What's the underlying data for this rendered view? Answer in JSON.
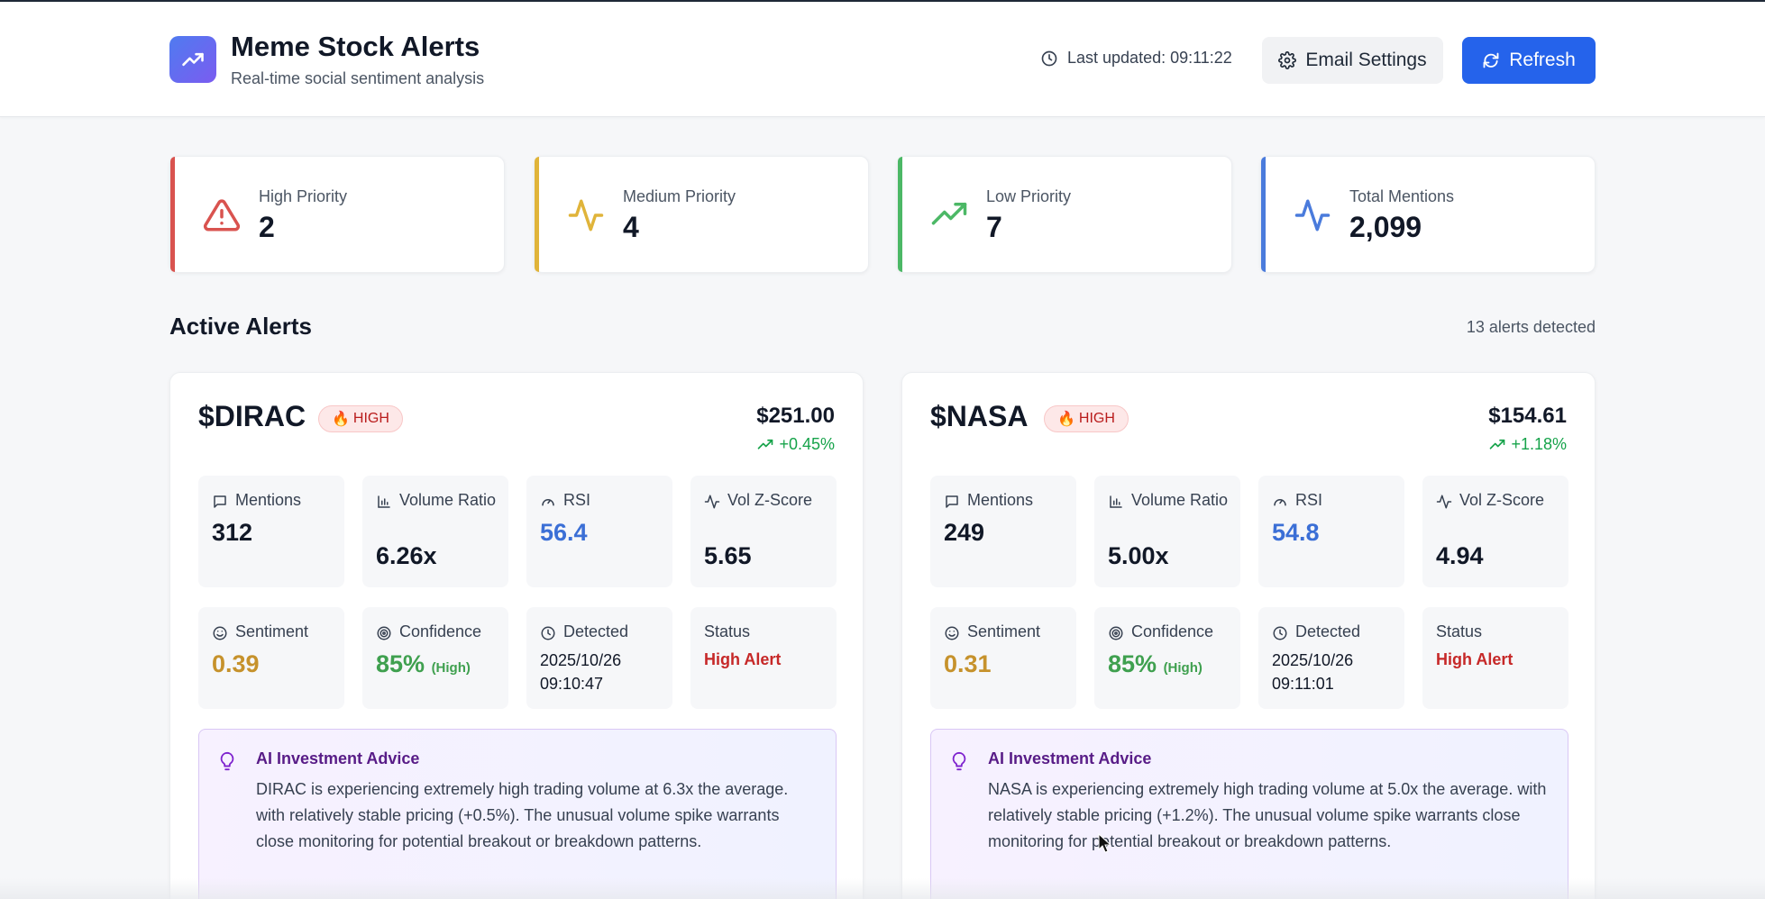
{
  "header": {
    "title": "Meme Stock Alerts",
    "subtitle": "Real-time social sentiment analysis",
    "last_updated": "Last updated: 09:11:22",
    "email_settings_label": "Email Settings",
    "refresh_label": "Refresh",
    "logo_icon": "trending-up-icon"
  },
  "stats": [
    {
      "label": "High Priority",
      "value": "2",
      "icon": "alert-triangle-icon",
      "color": "#d9534f"
    },
    {
      "label": "Medium Priority",
      "value": "4",
      "icon": "activity-icon",
      "color": "#e0b43a"
    },
    {
      "label": "Low Priority",
      "value": "7",
      "icon": "trending-up-icon",
      "color": "#4cb866"
    },
    {
      "label": "Total Mentions",
      "value": "2,099",
      "icon": "activity-icon",
      "color": "#4a7bdc"
    }
  ],
  "section": {
    "title": "Active Alerts",
    "count": "13 alerts detected"
  },
  "labels": {
    "mentions": "Mentions",
    "volume_ratio": "Volume Ratio",
    "rsi": "RSI",
    "vol_z": "Vol Z-Score",
    "sentiment": "Sentiment",
    "confidence": "Confidence",
    "detected": "Detected",
    "status": "Status",
    "advice_title": "AI Investment Advice"
  },
  "alerts": [
    {
      "ticker": "$DIRAC",
      "badge": "HIGH",
      "badge_emoji": "🔥",
      "price": "$251.00",
      "change": "+0.45%",
      "mentions": "312",
      "volume_ratio": "6.26x",
      "rsi": "56.4",
      "vol_z": "5.65",
      "sentiment": "0.39",
      "confidence": "85%",
      "confidence_level": "(High)",
      "detected_date": "2025/10/26",
      "detected_time": "09:10:47",
      "status": "High Alert",
      "advice": "DIRAC is experiencing extremely high trading volume at 6.3x the average. with relatively stable pricing (+0.5%). The unusual volume spike warrants close monitoring for potential breakout or breakdown patterns."
    },
    {
      "ticker": "$NASA",
      "badge": "HIGH",
      "badge_emoji": "🔥",
      "price": "$154.61",
      "change": "+1.18%",
      "mentions": "249",
      "volume_ratio": "5.00x",
      "rsi": "54.8",
      "vol_z": "4.94",
      "sentiment": "0.31",
      "confidence": "85%",
      "confidence_level": "(High)",
      "detected_date": "2025/10/26",
      "detected_time": "09:11:01",
      "status": "High Alert",
      "advice": "NASA is experiencing extremely high trading volume at 5.0x the average. with relatively stable pricing (+1.2%). The unusual volume spike warrants close monitoring for potential breakout or breakdown patterns."
    }
  ],
  "colors": {
    "rsi": "#3b6fd6",
    "sentiment": "#c6922c",
    "confidence": "#3fa04f",
    "status": "#c62828",
    "accent": "#2563eb"
  }
}
